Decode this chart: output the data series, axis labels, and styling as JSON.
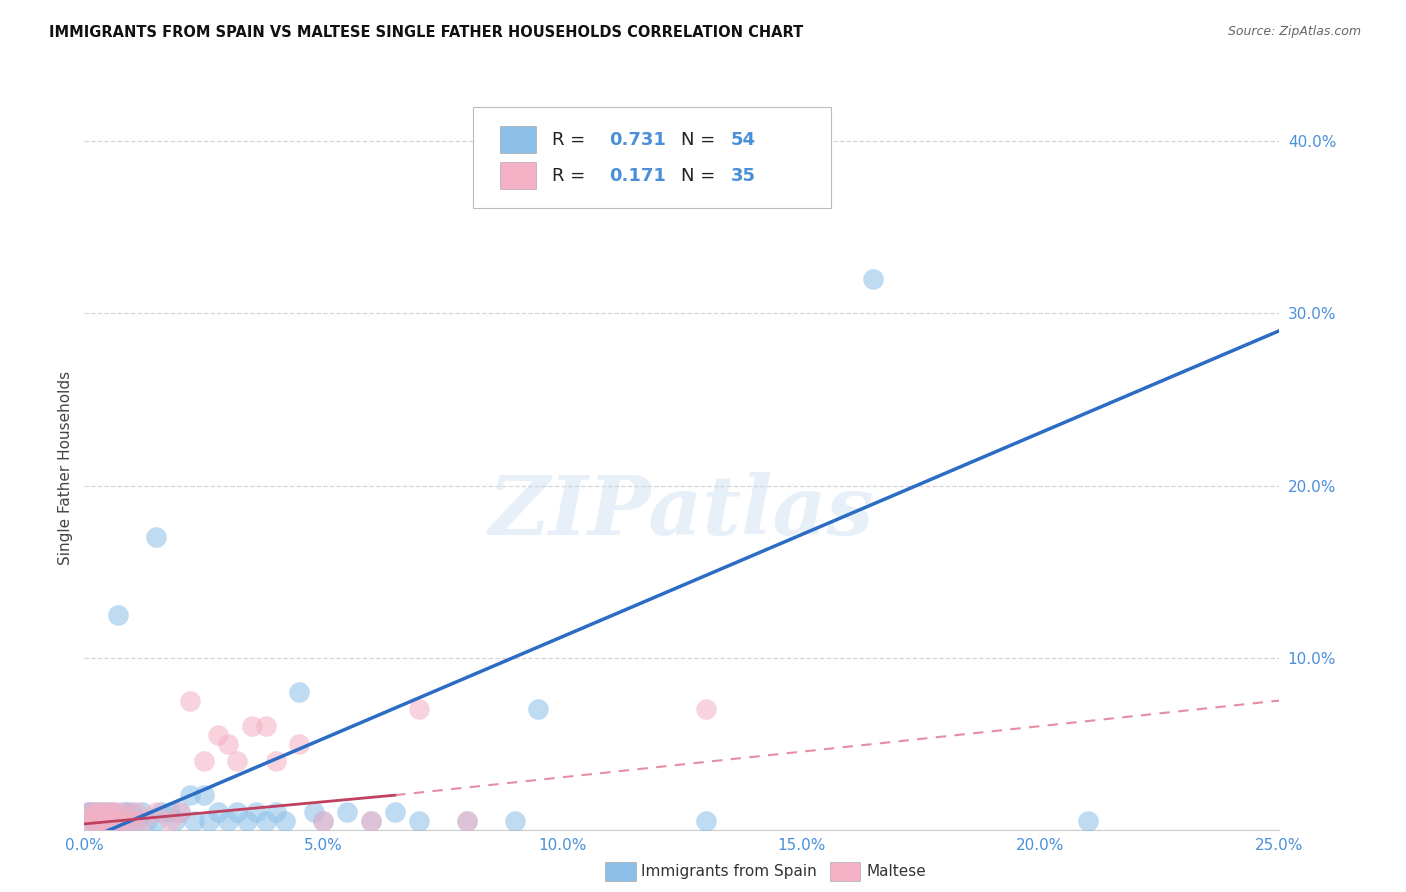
{
  "title": "IMMIGRANTS FROM SPAIN VS MALTESE SINGLE FATHER HOUSEHOLDS CORRELATION CHART",
  "source": "Source: ZipAtlas.com",
  "ylabel": "Single Father Households",
  "xlim": [
    0,
    0.25
  ],
  "ylim": [
    0,
    0.42
  ],
  "blue_color": "#8bbfe8",
  "pink_color": "#f4b0c4",
  "blue_line_color": "#2b6cc4",
  "pink_line_color": "#d9607a",
  "pink_line_solid_color": "#c04060",
  "R_blue": "0.731",
  "N_blue": "54",
  "R_pink": "0.171",
  "N_pink": "35",
  "legend_label_blue": "Immigrants from Spain",
  "legend_label_pink": "Maltese",
  "watermark": "ZIPatlas",
  "accent_color": "#4a90d9",
  "background_color": "#ffffff",
  "grid_color": "#cccccc",
  "blue_x": [
    0.001,
    0.001,
    0.001,
    0.002,
    0.002,
    0.003,
    0.003,
    0.004,
    0.004,
    0.005,
    0.005,
    0.006,
    0.006,
    0.007,
    0.008,
    0.008,
    0.009,
    0.01,
    0.01,
    0.011,
    0.012,
    0.013,
    0.015,
    0.016,
    0.018,
    0.019,
    0.02,
    0.022,
    0.023,
    0.025,
    0.026,
    0.028,
    0.03,
    0.032,
    0.034,
    0.036,
    0.038,
    0.04,
    0.042,
    0.045,
    0.048,
    0.05,
    0.055,
    0.06,
    0.065,
    0.07,
    0.08,
    0.09,
    0.095,
    0.13,
    0.21,
    0.007,
    0.015,
    0.165
  ],
  "blue_y": [
    0.01,
    0.01,
    0.005,
    0.01,
    0.005,
    0.005,
    0.01,
    0.005,
    0.01,
    0.005,
    0.01,
    0.005,
    0.01,
    0.005,
    0.01,
    0.005,
    0.01,
    0.005,
    0.01,
    0.005,
    0.01,
    0.005,
    0.005,
    0.01,
    0.01,
    0.005,
    0.01,
    0.02,
    0.005,
    0.02,
    0.005,
    0.01,
    0.005,
    0.01,
    0.005,
    0.01,
    0.005,
    0.01,
    0.005,
    0.08,
    0.01,
    0.005,
    0.01,
    0.005,
    0.01,
    0.005,
    0.005,
    0.005,
    0.07,
    0.005,
    0.005,
    0.125,
    0.17,
    0.32
  ],
  "pink_x": [
    0.001,
    0.001,
    0.002,
    0.002,
    0.003,
    0.003,
    0.004,
    0.004,
    0.005,
    0.005,
    0.006,
    0.007,
    0.007,
    0.008,
    0.009,
    0.01,
    0.011,
    0.012,
    0.015,
    0.018,
    0.02,
    0.022,
    0.025,
    0.028,
    0.03,
    0.032,
    0.035,
    0.038,
    0.04,
    0.045,
    0.05,
    0.06,
    0.07,
    0.08,
    0.13
  ],
  "pink_y": [
    0.01,
    0.005,
    0.01,
    0.005,
    0.01,
    0.005,
    0.01,
    0.005,
    0.01,
    0.005,
    0.01,
    0.005,
    0.01,
    0.005,
    0.01,
    0.005,
    0.01,
    0.005,
    0.01,
    0.005,
    0.01,
    0.075,
    0.04,
    0.055,
    0.05,
    0.04,
    0.06,
    0.06,
    0.04,
    0.05,
    0.005,
    0.005,
    0.07,
    0.005,
    0.07
  ]
}
